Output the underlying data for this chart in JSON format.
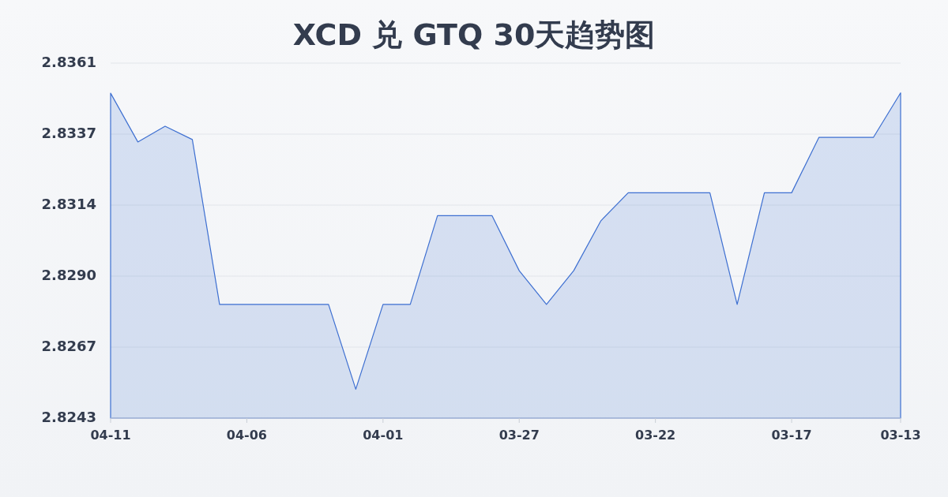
{
  "chart_data": {
    "type": "area",
    "title": "XCD 兑 GTQ 30天趋势图",
    "x": [
      "--04-11",
      "--04-10",
      "--04-09",
      "--04-08",
      "--04-07",
      "--04-06",
      "--04-05",
      "--04-04",
      "--04-03",
      "--04-02",
      "--04-01",
      "--03-31",
      "--03-30",
      "--03-29",
      "--03-28",
      "--03-27",
      "--03-26",
      "--03-25",
      "--03-24",
      "--03-23",
      "--03-22",
      "--03-21",
      "--03-20",
      "--03-19",
      "--03-18",
      "--03-17",
      "--03-16",
      "--03-15",
      "--03-14",
      "--03-13"
    ],
    "values": [
      2.8351,
      2.83348,
      2.834,
      2.83356,
      2.82808,
      2.82808,
      2.82808,
      2.82808,
      2.82808,
      2.82526,
      2.82808,
      2.82808,
      2.83103,
      2.83103,
      2.83103,
      2.8292,
      2.82808,
      2.8292,
      2.83086,
      2.83179,
      2.83179,
      2.83179,
      2.83179,
      2.82808,
      2.83179,
      2.83179,
      2.83363,
      2.83363,
      2.83363,
      2.83511
    ],
    "color": "#3d6fd1",
    "xlim": [
      "--04-11",
      "--03-13"
    ],
    "xticks": [
      {
        "value": "--04-11",
        "label": "04-11"
      },
      {
        "value": "--04-06",
        "label": "04-06"
      },
      {
        "value": "--04-01",
        "label": "04-01"
      },
      {
        "value": "--03-27",
        "label": "03-27"
      },
      {
        "value": "--03-22",
        "label": "03-22"
      },
      {
        "value": "--03-17",
        "label": "03-17"
      },
      {
        "value": "--03-13",
        "label": "03-13"
      }
    ],
    "ylim": [
      2.8243,
      2.8361
    ],
    "yticks": [
      2.8243,
      {
        "value": 2.82666,
        "label": "2.8267"
      },
      {
        "value": 2.82902,
        "label": "2.8290"
      },
      {
        "value": 2.83138,
        "label": "2.8314"
      },
      {
        "value": 2.83374,
        "label": "2.8337"
      },
      2.8361
    ],
    "grid": "y"
  }
}
